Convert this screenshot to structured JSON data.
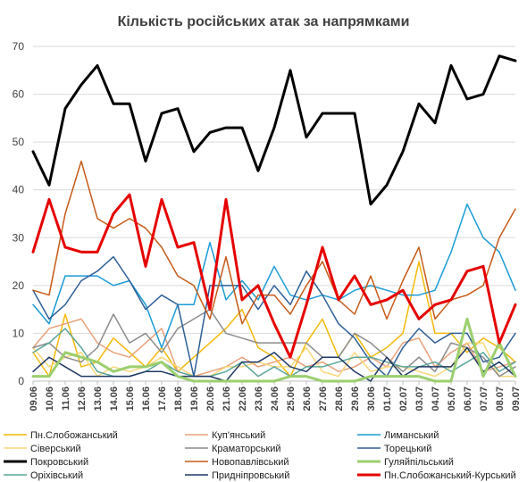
{
  "chart_data": {
    "type": "line",
    "title": "Кількість російських атак за напрямками",
    "ylim": [
      0,
      70
    ],
    "yticks": [
      0,
      10,
      20,
      30,
      40,
      50,
      60,
      70
    ],
    "grid": true,
    "legend_position": "bottom",
    "categories": [
      "09.06",
      "10.06",
      "11.06",
      "12.06",
      "13.06",
      "14.06",
      "15.06",
      "16.06",
      "17.06",
      "18.06",
      "19.06",
      "20.06",
      "21.06",
      "22.06",
      "23.06",
      "24.06",
      "25.06",
      "26.06",
      "27.06",
      "28.06",
      "29.06",
      "30.06",
      "01.07",
      "02.07",
      "03.07",
      "04.07",
      "05.07",
      "06.07",
      "07.07",
      "08.07",
      "09.07"
    ],
    "series": [
      {
        "name": "Пн.Слобожанський",
        "color": "#f5b90a",
        "width": 1.5,
        "values": [
          6,
          1,
          14,
          3,
          4,
          9,
          6,
          3,
          7,
          2,
          5,
          8,
          11,
          15,
          7,
          5,
          1,
          8,
          13,
          5,
          10,
          5,
          7,
          10,
          25,
          10,
          10,
          6,
          9,
          7,
          4
        ]
      },
      {
        "name": "Куп'янський",
        "color": "#e8a07a",
        "width": 1.5,
        "values": [
          7,
          11,
          12,
          13,
          8,
          6,
          5,
          8,
          11,
          2,
          1,
          2,
          3,
          5,
          3,
          4,
          5,
          3,
          4,
          2,
          3,
          5,
          3,
          8,
          9,
          3,
          6,
          8,
          2,
          3,
          4
        ]
      },
      {
        "name": "Лиманський",
        "color": "#1a9bd6",
        "width": 1.5,
        "values": [
          16,
          12,
          22,
          22,
          22,
          20,
          21,
          16,
          7,
          16,
          16,
          29,
          17,
          21,
          17,
          24,
          18,
          17,
          18,
          17,
          19,
          20,
          19,
          18,
          18,
          19,
          27,
          37,
          30,
          27,
          19
        ]
      },
      {
        "name": "Сіверський",
        "color": "#f8d77a",
        "width": 1.5,
        "values": [
          7,
          3,
          5,
          6,
          1,
          3,
          2,
          3,
          5,
          3,
          1,
          1,
          3,
          3,
          4,
          3,
          3,
          7,
          2,
          1,
          6,
          2,
          3,
          3,
          2,
          1,
          3,
          8,
          8,
          1,
          1
        ]
      },
      {
        "name": "Краматорський",
        "color": "#8c8c8c",
        "width": 1.5,
        "values": [
          7,
          8,
          5,
          4,
          7,
          14,
          8,
          10,
          6,
          11,
          13,
          15,
          10,
          9,
          8,
          8,
          8,
          8,
          5,
          5,
          10,
          8,
          5,
          2,
          5,
          2,
          8,
          7,
          5,
          1,
          3
        ]
      },
      {
        "name": "Торецький",
        "color": "#2e5f97",
        "width": 1.5,
        "values": [
          19,
          13,
          16,
          21,
          23,
          26,
          21,
          15,
          18,
          16,
          1,
          20,
          20,
          20,
          15,
          20,
          16,
          23,
          18,
          12,
          9,
          4,
          1,
          7,
          11,
          8,
          10,
          10,
          4,
          5,
          10
        ]
      },
      {
        "name": "Покровський",
        "color": "#000000",
        "width": 3,
        "values": [
          48,
          41,
          57,
          62,
          66,
          58,
          58,
          46,
          56,
          57,
          48,
          52,
          53,
          53,
          44,
          53,
          65,
          51,
          56,
          56,
          56,
          37,
          41,
          48,
          58,
          54,
          66,
          59,
          60,
          68,
          67
        ]
      },
      {
        "name": "Новопавлівський",
        "color": "#c65a18",
        "width": 1.5,
        "values": [
          19,
          18,
          35,
          46,
          34,
          32,
          34,
          32,
          28,
          22,
          20,
          13,
          26,
          12,
          18,
          18,
          14,
          20,
          25,
          17,
          14,
          22,
          13,
          21,
          28,
          13,
          17,
          18,
          20,
          30,
          36
        ]
      },
      {
        "name": "Гуляйпільський",
        "color": "#9bcf6e",
        "width": 3,
        "values": [
          1,
          1,
          6,
          5,
          4,
          2,
          3,
          3,
          4,
          1,
          0,
          0,
          0,
          0,
          0,
          0,
          1,
          1,
          0,
          0,
          0,
          1,
          1,
          1,
          1,
          0,
          0,
          13,
          1,
          8,
          1
        ]
      },
      {
        "name": "Оріхівський",
        "color": "#5aa69a",
        "width": 1.5,
        "values": [
          6,
          8,
          11,
          7,
          2,
          1,
          1,
          2,
          4,
          2,
          1,
          1,
          2,
          4,
          1,
          3,
          1,
          3,
          3,
          4,
          5,
          5,
          4,
          3,
          3,
          4,
          2,
          4,
          6,
          2,
          4
        ]
      },
      {
        "name": "Придніпровський",
        "color": "#1f3864",
        "width": 1.5,
        "values": [
          2,
          5,
          3,
          1,
          1,
          1,
          1,
          2,
          2,
          1,
          1,
          1,
          0,
          4,
          4,
          6,
          3,
          2,
          5,
          5,
          2,
          0,
          5,
          1,
          3,
          3,
          3,
          7,
          2,
          4,
          1
        ]
      },
      {
        "name": "Пн.Слобожанський-Курський",
        "color": "#e60000",
        "width": 3,
        "values": [
          27,
          38,
          28,
          27,
          27,
          35,
          39,
          24,
          38,
          28,
          29,
          15,
          38,
          17,
          20,
          12,
          5,
          16,
          28,
          17,
          22,
          16,
          17,
          19,
          13,
          16,
          17,
          23,
          24,
          8,
          16
        ]
      }
    ]
  }
}
